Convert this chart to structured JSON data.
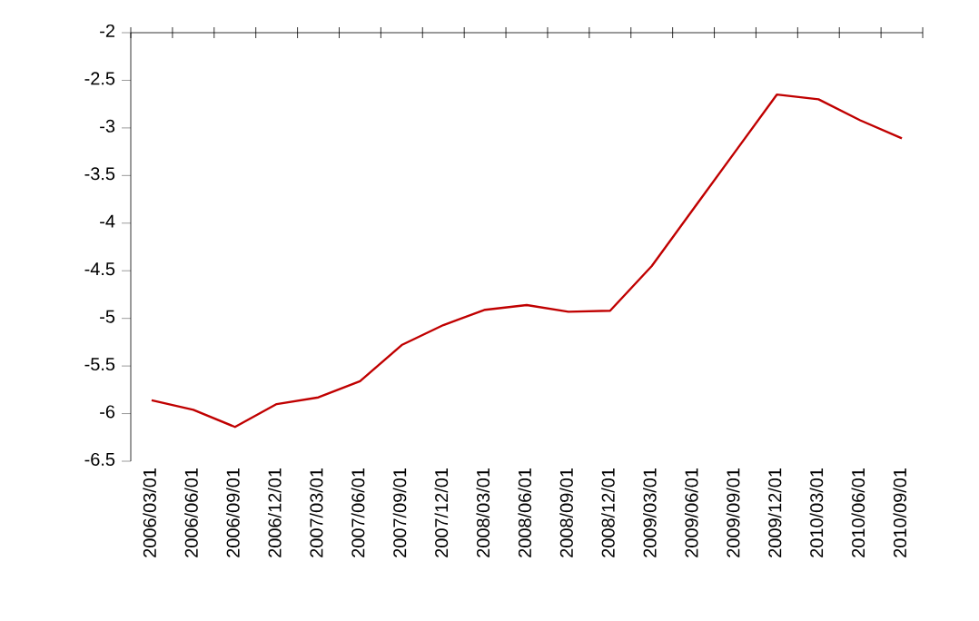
{
  "chart_data": {
    "type": "line",
    "categories": [
      "2006/03/01",
      "2006/06/01",
      "2006/09/01",
      "2006/12/01",
      "2007/03/01",
      "2007/06/01",
      "2007/09/01",
      "2007/12/01",
      "2008/03/01",
      "2008/06/01",
      "2008/09/01",
      "2008/12/01",
      "2009/03/01",
      "2009/06/01",
      "2009/09/01",
      "2009/12/01",
      "2010/03/01",
      "2010/06/01",
      "2010/09/01"
    ],
    "series": [
      {
        "color": "#c00000",
        "values": [
          -5.86,
          -5.96,
          -6.14,
          -5.9,
          -5.83,
          -5.66,
          -5.28,
          -5.07,
          -4.91,
          -4.86,
          -4.93,
          -4.92,
          -4.45,
          -3.85,
          -3.25,
          -2.65,
          -2.7,
          -2.92,
          -3.11
        ]
      }
    ],
    "ylim": [
      -6.5,
      -2
    ],
    "yticks": [
      -6.5,
      -6,
      -5.5,
      -5,
      -4.5,
      -4,
      -3.5,
      -3,
      -2.5,
      -2
    ],
    "grid": false,
    "marker": "none",
    "line_style": "solid"
  }
}
